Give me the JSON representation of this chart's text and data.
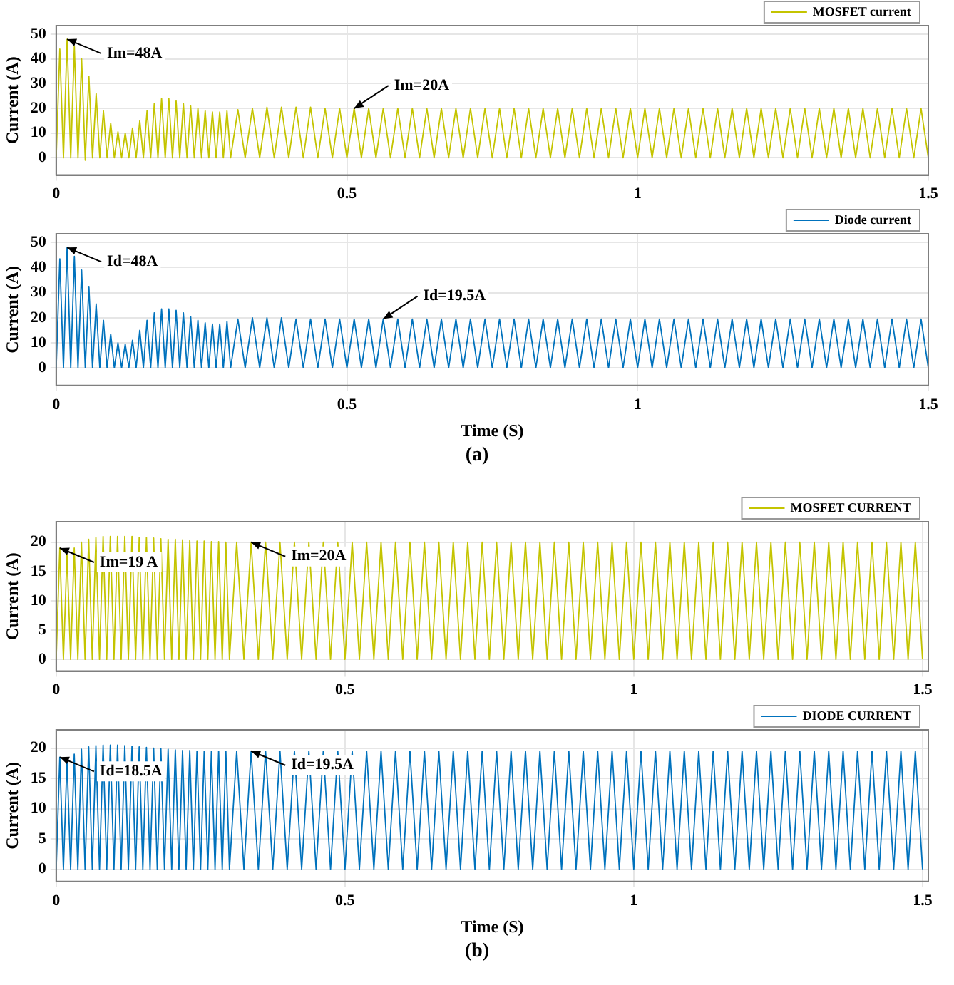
{
  "chart_data": [
    {
      "type": "line",
      "ylabel": "Current (A)",
      "xlim": [
        0,
        1.5
      ],
      "ylim": [
        -7,
        53.5
      ],
      "xticks": [
        0,
        0.5,
        1,
        1.5
      ],
      "yticks": [
        0,
        10,
        20,
        30,
        40,
        50
      ],
      "grid": true,
      "legend": "top right",
      "marker": "none",
      "x": [
        0,
        0.00625,
        0.0125,
        0.01875,
        0.025,
        0.03125,
        0.0375,
        0.04375,
        0.05,
        0.05625,
        0.0625,
        0.06875,
        0.075,
        0.08125,
        0.0875,
        0.09375,
        0.1,
        0.10625,
        0.1125,
        0.11875,
        0.125,
        0.13125,
        0.1375,
        0.14375,
        0.15,
        0.15625,
        0.1625,
        0.16875,
        0.175,
        0.18125,
        0.1875,
        0.19375,
        0.2,
        0.20625,
        0.2125,
        0.21875,
        0.225,
        0.23125,
        0.2375,
        0.24375,
        0.25,
        0.25625,
        0.2625,
        0.26875,
        0.275,
        0.28125,
        0.2875,
        0.29375,
        0.3,
        0.3125,
        0.325,
        0.3375,
        0.35,
        0.3625,
        0.375,
        0.3875,
        0.4,
        0.4125,
        0.425,
        0.4375,
        0.45,
        0.4625,
        0.475,
        0.4875,
        0.5,
        0.5125,
        0.525,
        0.5375,
        0.55,
        0.5625,
        0.575,
        0.5875,
        0.6,
        0.6125,
        0.625,
        0.6375,
        0.65,
        0.6625,
        0.675,
        0.6875,
        0.7,
        0.7125,
        0.725,
        0.7375,
        0.75,
        0.7625,
        0.775,
        0.7875,
        0.8,
        0.8125,
        0.825,
        0.8375,
        0.85,
        0.8625,
        0.875,
        0.8875,
        0.9,
        0.9125,
        0.925,
        0.9375,
        0.95,
        0.9625,
        0.975,
        0.9875,
        1,
        1.0125,
        1.025,
        1.0375,
        1.05,
        1.0625,
        1.075,
        1.0875,
        1.1,
        1.1125,
        1.125,
        1.1375,
        1.15,
        1.1625,
        1.175,
        1.1875,
        1.2,
        1.2125,
        1.225,
        1.2375,
        1.25,
        1.2625,
        1.275,
        1.2875,
        1.3,
        1.3125,
        1.325,
        1.3375,
        1.35,
        1.3625,
        1.375,
        1.3875,
        1.4,
        1.4125,
        1.425,
        1.4375,
        1.45,
        1.4625,
        1.475,
        1.4875,
        1.5
      ],
      "series": [
        {
          "name": "MOSFET current",
          "color": "#c4c400",
          "values": [
            0,
            44,
            0,
            48,
            0,
            45,
            0,
            40,
            -1,
            33,
            0,
            26,
            0,
            19,
            0,
            14,
            0,
            10.5,
            0,
            10,
            0,
            12,
            0,
            15,
            0,
            19,
            0,
            22,
            0,
            24,
            0,
            24,
            0,
            23,
            0,
            22,
            0,
            21,
            0,
            20,
            0,
            19,
            0,
            18.5,
            0,
            18.5,
            0,
            19,
            0,
            19.5,
            0,
            20,
            0,
            20.5,
            0,
            20.5,
            0,
            20.5,
            0,
            20.5,
            0,
            20,
            0,
            20,
            0,
            20,
            0,
            20,
            0,
            20,
            0,
            20,
            0,
            20,
            0,
            20,
            0,
            20,
            0,
            20,
            0,
            20,
            0,
            20,
            0,
            20,
            0,
            20,
            0,
            20,
            0,
            20,
            0,
            20,
            0,
            20,
            0,
            20,
            0,
            20,
            0,
            20,
            0,
            20,
            0,
            20,
            0,
            20,
            0,
            20,
            0,
            20,
            0,
            20,
            0,
            20,
            0,
            20,
            0,
            20,
            0,
            20,
            0,
            20,
            0,
            20,
            0,
            20,
            0,
            20,
            0,
            20,
            0,
            20,
            0,
            20,
            0,
            20,
            0,
            20,
            0,
            20,
            0,
            20,
            0
          ]
        }
      ],
      "annotations": [
        {
          "text": "Im=48A",
          "x": 0.01875,
          "y": 48
        },
        {
          "text": "Im=20A",
          "x": 0.5125,
          "y": 20
        }
      ]
    },
    {
      "type": "line",
      "xlabel": "Time (S)",
      "ylabel": "Current (A)",
      "xlim": [
        0,
        1.5
      ],
      "ylim": [
        -7,
        53.5
      ],
      "xticks": [
        0,
        0.5,
        1,
        1.5
      ],
      "yticks": [
        0,
        10,
        20,
        30,
        40,
        50
      ],
      "grid": true,
      "legend": "top right",
      "marker": "none",
      "x": [
        0,
        0.00625,
        0.0125,
        0.01875,
        0.025,
        0.03125,
        0.0375,
        0.04375,
        0.05,
        0.05625,
        0.0625,
        0.06875,
        0.075,
        0.08125,
        0.0875,
        0.09375,
        0.1,
        0.10625,
        0.1125,
        0.11875,
        0.125,
        0.13125,
        0.1375,
        0.14375,
        0.15,
        0.15625,
        0.1625,
        0.16875,
        0.175,
        0.18125,
        0.1875,
        0.19375,
        0.2,
        0.20625,
        0.2125,
        0.21875,
        0.225,
        0.23125,
        0.2375,
        0.24375,
        0.25,
        0.25625,
        0.2625,
        0.26875,
        0.275,
        0.28125,
        0.2875,
        0.29375,
        0.3,
        0.3125,
        0.325,
        0.3375,
        0.35,
        0.3625,
        0.375,
        0.3875,
        0.4,
        0.4125,
        0.425,
        0.4375,
        0.45,
        0.4625,
        0.475,
        0.4875,
        0.5,
        0.5125,
        0.525,
        0.5375,
        0.55,
        0.5625,
        0.575,
        0.5875,
        0.6,
        0.6125,
        0.625,
        0.6375,
        0.65,
        0.6625,
        0.675,
        0.6875,
        0.7,
        0.7125,
        0.725,
        0.7375,
        0.75,
        0.7625,
        0.775,
        0.7875,
        0.8,
        0.8125,
        0.825,
        0.8375,
        0.85,
        0.8625,
        0.875,
        0.8875,
        0.9,
        0.9125,
        0.925,
        0.9375,
        0.95,
        0.9625,
        0.975,
        0.9875,
        1,
        1.0125,
        1.025,
        1.0375,
        1.05,
        1.0625,
        1.075,
        1.0875,
        1.1,
        1.1125,
        1.125,
        1.1375,
        1.15,
        1.1625,
        1.175,
        1.1875,
        1.2,
        1.2125,
        1.225,
        1.2375,
        1.25,
        1.2625,
        1.275,
        1.2875,
        1.3,
        1.3125,
        1.325,
        1.3375,
        1.35,
        1.3625,
        1.375,
        1.3875,
        1.4,
        1.4125,
        1.425,
        1.4375,
        1.45,
        1.4625,
        1.475,
        1.4875,
        1.5
      ],
      "series": [
        {
          "name": "Diode current",
          "color": "#0072bd",
          "values": [
            0,
            43.5,
            0,
            48,
            0,
            44.5,
            0,
            39,
            0,
            32.5,
            0,
            25.5,
            0,
            19,
            0,
            13.5,
            0,
            10,
            0,
            9.5,
            0,
            11,
            0,
            15,
            0,
            19,
            0,
            22,
            0,
            23.5,
            0,
            23.5,
            0,
            23,
            0,
            22,
            0,
            20.5,
            0,
            19,
            0,
            18,
            0,
            17.5,
            0,
            17.5,
            0,
            18.5,
            0,
            19.5,
            0,
            20,
            0,
            20,
            0,
            20,
            0,
            19.5,
            0,
            19.5,
            0,
            19.5,
            0,
            19.5,
            0,
            19.5,
            0,
            19.5,
            0,
            19.5,
            0,
            19.5,
            0,
            19.5,
            0,
            19.5,
            0,
            19.5,
            0,
            19.5,
            0,
            19.5,
            0,
            19.5,
            0,
            19.5,
            0,
            19.5,
            0,
            19.5,
            0,
            19.5,
            0,
            19.5,
            0,
            19.5,
            0,
            19.5,
            0,
            19.5,
            0,
            19.5,
            0,
            19.5,
            0,
            19.5,
            0,
            19.5,
            0,
            19.5,
            0,
            19.5,
            0,
            19.5,
            0,
            19.5,
            0,
            19.5,
            0,
            19.5,
            0,
            19.5,
            0,
            19.5,
            0,
            19.5,
            0,
            19.5,
            0,
            19.5,
            0,
            19.5,
            0,
            19.5,
            0,
            19.5,
            0,
            19.5,
            0,
            19.5,
            0,
            19.5,
            0,
            19.5,
            0
          ]
        }
      ],
      "annotations": [
        {
          "text": "Id=48A",
          "x": 0.01875,
          "y": 48
        },
        {
          "text": "Id=19.5A",
          "x": 0.5625,
          "y": 19.5
        },
        "(a)"
      ]
    },
    {
      "type": "line",
      "ylabel": "Current (A)",
      "xlim": [
        0,
        1.51
      ],
      "ylim": [
        -2,
        23.5
      ],
      "xticks": [
        0,
        0.5,
        1,
        1.5
      ],
      "yticks": [
        0,
        5,
        10,
        15,
        20
      ],
      "grid": true,
      "legend": "top right",
      "marker": "none",
      "x": [
        0,
        0.00625,
        0.0125,
        0.01875,
        0.025,
        0.03125,
        0.0375,
        0.04375,
        0.05,
        0.05625,
        0.0625,
        0.06875,
        0.075,
        0.08125,
        0.0875,
        0.09375,
        0.1,
        0.10625,
        0.1125,
        0.11875,
        0.125,
        0.13125,
        0.1375,
        0.14375,
        0.15,
        0.15625,
        0.1625,
        0.16875,
        0.175,
        0.18125,
        0.1875,
        0.19375,
        0.2,
        0.20625,
        0.2125,
        0.21875,
        0.225,
        0.23125,
        0.2375,
        0.24375,
        0.25,
        0.25625,
        0.2625,
        0.26875,
        0.275,
        0.28125,
        0.2875,
        0.29375,
        0.3,
        0.3125,
        0.325,
        0.3375,
        0.35,
        0.3625,
        0.375,
        0.3875,
        0.4,
        0.4125,
        0.425,
        0.4375,
        0.45,
        0.4625,
        0.475,
        0.4875,
        0.5,
        0.5125,
        0.525,
        0.5375,
        0.55,
        0.5625,
        0.575,
        0.5875,
        0.6,
        0.6125,
        0.625,
        0.6375,
        0.65,
        0.6625,
        0.675,
        0.6875,
        0.7,
        0.7125,
        0.725,
        0.7375,
        0.75,
        0.7625,
        0.775,
        0.7875,
        0.8,
        0.8125,
        0.825,
        0.8375,
        0.85,
        0.8625,
        0.875,
        0.8875,
        0.9,
        0.9125,
        0.925,
        0.9375,
        0.95,
        0.9625,
        0.975,
        0.9875,
        1,
        1.0125,
        1.025,
        1.0375,
        1.05,
        1.0625,
        1.075,
        1.0875,
        1.1,
        1.1125,
        1.125,
        1.1375,
        1.15,
        1.1625,
        1.175,
        1.1875,
        1.2,
        1.2125,
        1.225,
        1.2375,
        1.25,
        1.2625,
        1.275,
        1.2875,
        1.3,
        1.3125,
        1.325,
        1.3375,
        1.35,
        1.3625,
        1.375,
        1.3875,
        1.4,
        1.4125,
        1.425,
        1.4375,
        1.45,
        1.4625,
        1.475,
        1.4875,
        1.5
      ],
      "series": [
        {
          "name": "MOSFET CURRENT",
          "color": "#c4c400",
          "values": [
            0,
            19,
            0,
            18,
            0,
            19,
            0,
            20,
            0,
            20.5,
            0,
            20.8,
            0,
            21,
            0,
            21,
            0,
            21,
            0,
            21,
            0,
            21,
            0,
            20.8,
            0,
            20.8,
            0,
            20.7,
            0,
            20.6,
            0,
            20.5,
            0,
            20.5,
            0,
            20.4,
            0,
            20.3,
            0,
            20.2,
            0,
            20.2,
            0,
            20.1,
            0,
            20.1,
            0,
            20,
            0,
            20,
            0,
            20,
            0,
            20,
            0,
            20,
            0,
            20,
            0,
            20,
            0,
            20,
            0,
            20,
            0,
            20,
            0,
            20,
            0,
            20,
            0,
            20,
            0,
            20,
            0,
            20,
            0,
            20,
            0,
            20,
            0,
            20,
            0,
            20,
            0,
            20,
            0,
            20,
            0,
            20,
            0,
            20,
            0,
            20,
            0,
            20,
            0,
            20,
            0,
            20,
            0,
            20,
            0,
            20,
            0,
            20,
            0,
            20,
            0,
            20,
            0,
            20,
            0,
            20,
            0,
            20,
            0,
            20,
            0,
            20,
            0,
            20,
            0,
            20,
            0,
            20,
            0,
            20,
            0,
            20,
            0,
            20,
            0,
            20,
            0,
            20,
            0,
            20,
            0,
            20,
            0,
            20,
            0,
            20,
            0
          ]
        }
      ],
      "annotations": [
        {
          "text": "Im=19 A",
          "x": 0.00625,
          "y": 19
        },
        {
          "text": "Im=20A",
          "x": 0.3375,
          "y": 20
        }
      ]
    },
    {
      "type": "line",
      "xlabel": "Time (S)",
      "ylabel": "Current (A)",
      "xlim": [
        0,
        1.51
      ],
      "ylim": [
        -2,
        23
      ],
      "xticks": [
        0,
        0.5,
        1,
        1.5
      ],
      "yticks": [
        0,
        5,
        10,
        15,
        20
      ],
      "grid": true,
      "legend": "top right",
      "marker": "none",
      "x": [
        0,
        0.00625,
        0.0125,
        0.01875,
        0.025,
        0.03125,
        0.0375,
        0.04375,
        0.05,
        0.05625,
        0.0625,
        0.06875,
        0.075,
        0.08125,
        0.0875,
        0.09375,
        0.1,
        0.10625,
        0.1125,
        0.11875,
        0.125,
        0.13125,
        0.1375,
        0.14375,
        0.15,
        0.15625,
        0.1625,
        0.16875,
        0.175,
        0.18125,
        0.1875,
        0.19375,
        0.2,
        0.20625,
        0.2125,
        0.21875,
        0.225,
        0.23125,
        0.2375,
        0.24375,
        0.25,
        0.25625,
        0.2625,
        0.26875,
        0.275,
        0.28125,
        0.2875,
        0.29375,
        0.3,
        0.3125,
        0.325,
        0.3375,
        0.35,
        0.3625,
        0.375,
        0.3875,
        0.4,
        0.4125,
        0.425,
        0.4375,
        0.45,
        0.4625,
        0.475,
        0.4875,
        0.5,
        0.5125,
        0.525,
        0.5375,
        0.55,
        0.5625,
        0.575,
        0.5875,
        0.6,
        0.6125,
        0.625,
        0.6375,
        0.65,
        0.6625,
        0.675,
        0.6875,
        0.7,
        0.7125,
        0.725,
        0.7375,
        0.75,
        0.7625,
        0.775,
        0.7875,
        0.8,
        0.8125,
        0.825,
        0.8375,
        0.85,
        0.8625,
        0.875,
        0.8875,
        0.9,
        0.9125,
        0.925,
        0.9375,
        0.95,
        0.9625,
        0.975,
        0.9875,
        1,
        1.0125,
        1.025,
        1.0375,
        1.05,
        1.0625,
        1.075,
        1.0875,
        1.1,
        1.1125,
        1.125,
        1.1375,
        1.15,
        1.1625,
        1.175,
        1.1875,
        1.2,
        1.2125,
        1.225,
        1.2375,
        1.25,
        1.2625,
        1.275,
        1.2875,
        1.3,
        1.3125,
        1.325,
        1.3375,
        1.35,
        1.3625,
        1.375,
        1.3875,
        1.4,
        1.4125,
        1.425,
        1.4375,
        1.45,
        1.4625,
        1.475,
        1.4875,
        1.5
      ],
      "series": [
        {
          "name": "DIODE CURRENT",
          "color": "#0072bd",
          "values": [
            0,
            18.5,
            0,
            18,
            0,
            19,
            0,
            19.8,
            0,
            20.2,
            0,
            20.4,
            0,
            20.5,
            0,
            20.5,
            0,
            20.5,
            0,
            20.4,
            0,
            20.3,
            0,
            20.2,
            0,
            20.1,
            0,
            20,
            0,
            19.9,
            0,
            19.8,
            0,
            19.7,
            0,
            19.6,
            0,
            19.6,
            0,
            19.5,
            0,
            19.5,
            0,
            19.5,
            0,
            19.5,
            0,
            19.5,
            0,
            19.5,
            0,
            19.5,
            0,
            19.5,
            0,
            19.5,
            0,
            19.5,
            0,
            19.5,
            0,
            19.5,
            0,
            19.5,
            0,
            19.5,
            0,
            19.5,
            0,
            19.5,
            0,
            19.5,
            0,
            19.5,
            0,
            19.5,
            0,
            19.5,
            0,
            19.5,
            0,
            19.5,
            0,
            19.5,
            0,
            19.5,
            0,
            19.5,
            0,
            19.5,
            0,
            19.5,
            0,
            19.5,
            0,
            19.5,
            0,
            19.5,
            0,
            19.5,
            0,
            19.5,
            0,
            19.5,
            0,
            19.5,
            0,
            19.5,
            0,
            19.5,
            0,
            19.5,
            0,
            19.5,
            0,
            19.5,
            0,
            19.5,
            0,
            19.5,
            0,
            19.5,
            0,
            19.5,
            0,
            19.5,
            0,
            19.5,
            0,
            19.5,
            0,
            19.5,
            0,
            19.5,
            0,
            19.5,
            0,
            19.5,
            0,
            19.5,
            0,
            19.5,
            0,
            19.5,
            0
          ]
        }
      ],
      "annotations": [
        {
          "text": "Id=18.5A",
          "x": 0.00625,
          "y": 18.5
        },
        {
          "text": "Id=19.5A",
          "x": 0.3375,
          "y": 19.5
        },
        "(b)"
      ]
    }
  ]
}
